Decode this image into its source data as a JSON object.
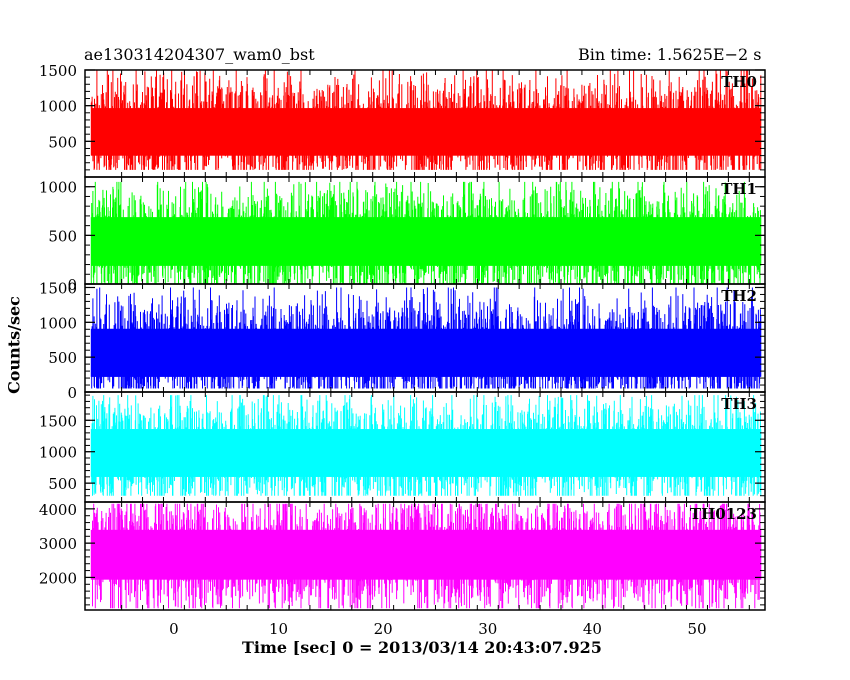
{
  "title_left": "ae130314204307_wam0_bst",
  "title_right": "Bin time: 1.5625E−2 s",
  "xlabel": "Time [sec] 0 = 2013/03/14 20:43:07.925",
  "ylabel": "Counts/sec",
  "chart_data": [
    {
      "type": "line",
      "name": "TH0",
      "color": "#ff0000",
      "x_range": [
        -8.5,
        56.5
      ],
      "data_x_range": [
        -7.9,
        56.1
      ],
      "ylim": [
        0,
        1500
      ],
      "yticks": [
        500,
        1000,
        1500
      ],
      "signal_mean": 650,
      "signal_min": 100,
      "signal_max": 1500
    },
    {
      "type": "line",
      "name": "TH1",
      "color": "#00ff00",
      "x_range": [
        -8.5,
        56.5
      ],
      "data_x_range": [
        -7.9,
        56.1
      ],
      "ylim": [
        0,
        1100
      ],
      "yticks": [
        0,
        500,
        1000
      ],
      "signal_mean": 450,
      "signal_min": 0,
      "signal_max": 1050
    },
    {
      "type": "line",
      "name": "TH2",
      "color": "#0000ff",
      "x_range": [
        -8.5,
        56.5
      ],
      "data_x_range": [
        -7.9,
        56.1
      ],
      "ylim": [
        0,
        1550
      ],
      "yticks": [
        0,
        500,
        1000,
        1500
      ],
      "signal_mean": 580,
      "signal_min": 50,
      "signal_max": 1500
    },
    {
      "type": "line",
      "name": "TH3",
      "color": "#00ffff",
      "x_range": [
        -8.5,
        56.5
      ],
      "data_x_range": [
        -7.9,
        56.1
      ],
      "ylim": [
        200,
        1950
      ],
      "yticks": [
        500,
        1000,
        1500
      ],
      "signal_mean": 1000,
      "signal_min": 300,
      "signal_max": 1900
    },
    {
      "type": "line",
      "name": "TH0123",
      "color": "#ff00ff",
      "x_range": [
        -8.5,
        56.5
      ],
      "data_x_range": [
        -7.9,
        56.1
      ],
      "ylim": [
        1050,
        4200
      ],
      "yticks": [
        2000,
        3000,
        4000
      ],
      "signal_mean": 2700,
      "signal_min": 1100,
      "signal_max": 4150
    }
  ],
  "xticks": [
    0,
    10,
    20,
    30,
    40,
    50
  ],
  "grid": false
}
